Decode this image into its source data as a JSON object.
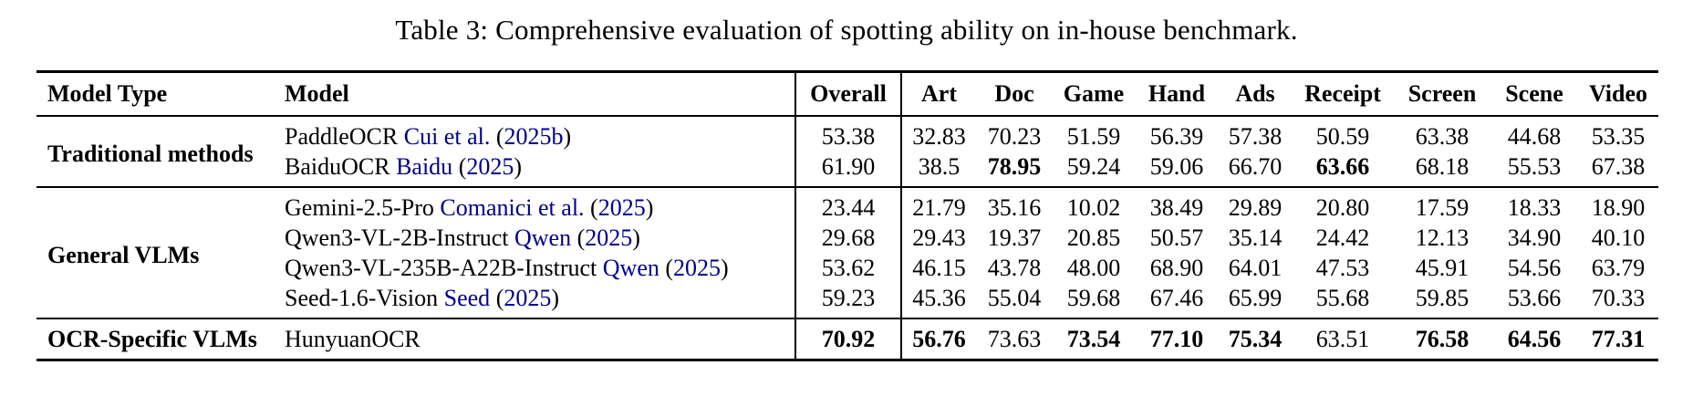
{
  "title": "Table 3: Comprehensive evaluation of spotting ability on in-house benchmark.",
  "colors": {
    "citation_blue": "#00008B",
    "text": "#000000",
    "rule": "#000000"
  },
  "header": {
    "model_type": "Model Type",
    "model": "Model",
    "overall": "Overall",
    "categories": [
      "Art",
      "Doc",
      "Game",
      "Hand",
      "Ads",
      "Receipt",
      "Screen",
      "Scene",
      "Video"
    ]
  },
  "chart_data": {
    "type": "table",
    "title": "Table 3: Comprehensive evaluation of spotting ability on in-house benchmark.",
    "columns": [
      "Model Type",
      "Model",
      "Overall",
      "Art",
      "Doc",
      "Game",
      "Hand",
      "Ads",
      "Receipt",
      "Screen",
      "Scene",
      "Video"
    ]
  },
  "groups": [
    {
      "type": "Traditional methods",
      "rows": [
        {
          "name": "PaddleOCR",
          "cite": "Cui et al.",
          "year": "2025b",
          "overall": "53.38",
          "overall_bold": false,
          "scores": [
            "32.83",
            "70.23",
            "51.59",
            "56.39",
            "57.38",
            "50.59",
            "63.38",
            "44.68",
            "53.35"
          ],
          "bold": []
        },
        {
          "name": "BaiduOCR",
          "cite": "Baidu",
          "year": "2025",
          "overall": "61.90",
          "overall_bold": false,
          "scores": [
            "38.5",
            "78.95",
            "59.24",
            "59.06",
            "66.70",
            "63.66",
            "68.18",
            "55.53",
            "67.38"
          ],
          "bold": [
            1,
            5
          ]
        }
      ]
    },
    {
      "type": "General VLMs",
      "rows": [
        {
          "name": "Gemini-2.5-Pro",
          "cite": "Comanici et al.",
          "year": "2025",
          "overall": "23.44",
          "overall_bold": false,
          "scores": [
            "21.79",
            "35.16",
            "10.02",
            "38.49",
            "29.89",
            "20.80",
            "17.59",
            "18.33",
            "18.90"
          ],
          "bold": []
        },
        {
          "name": "Qwen3-VL-2B-Instruct",
          "cite": "Qwen",
          "year": "2025",
          "overall": "29.68",
          "overall_bold": false,
          "scores": [
            "29.43",
            "19.37",
            "20.85",
            "50.57",
            "35.14",
            "24.42",
            "12.13",
            "34.90",
            "40.10"
          ],
          "bold": []
        },
        {
          "name": "Qwen3-VL-235B-A22B-Instruct",
          "cite": "Qwen",
          "year": "2025",
          "overall": "53.62",
          "overall_bold": false,
          "scores": [
            "46.15",
            "43.78",
            "48.00",
            "68.90",
            "64.01",
            "47.53",
            "45.91",
            "54.56",
            "63.79"
          ],
          "bold": []
        },
        {
          "name": "Seed-1.6-Vision",
          "cite": "Seed",
          "year": "2025",
          "overall": "59.23",
          "overall_bold": false,
          "scores": [
            "45.36",
            "55.04",
            "59.68",
            "67.46",
            "65.99",
            "55.68",
            "59.85",
            "53.66",
            "70.33"
          ],
          "bold": []
        }
      ]
    },
    {
      "type": "OCR-Specific VLMs",
      "rows": [
        {
          "name": "HunyuanOCR",
          "cite": null,
          "year": null,
          "overall": "70.92",
          "overall_bold": true,
          "scores": [
            "56.76",
            "73.63",
            "73.54",
            "77.10",
            "75.34",
            "63.51",
            "76.58",
            "64.56",
            "77.31"
          ],
          "bold": [
            0,
            2,
            3,
            4,
            6,
            7,
            8
          ]
        }
      ]
    }
  ]
}
